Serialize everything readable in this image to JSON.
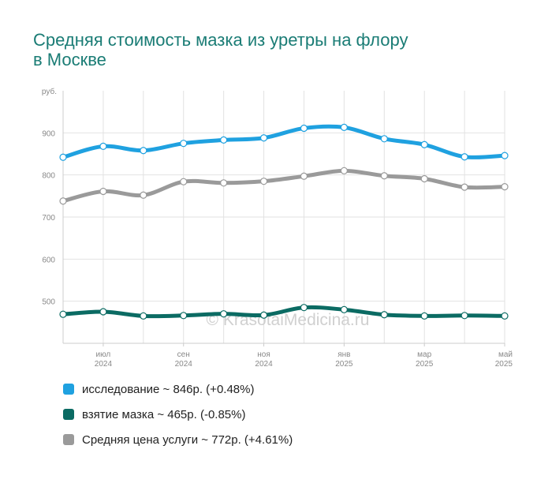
{
  "title_lines": [
    "Средняя стоимость мазка из уретры на флору",
    "в Москве"
  ],
  "watermark": "© KrasotaiMedicina.ru",
  "chart_data": {
    "type": "line",
    "ylabel": "руб.",
    "ylim": [
      400,
      1000
    ],
    "yticks": [
      500,
      600,
      700,
      800,
      900
    ],
    "grid": true,
    "x": [
      "2024-06",
      "2024-07",
      "2024-08",
      "2024-09",
      "2024-10",
      "2024-11",
      "2024-12",
      "2025-01",
      "2025-02",
      "2025-03",
      "2025-04",
      "2025-05"
    ],
    "xticks": [
      {
        "x": "2024-07",
        "month": "июл",
        "year": "2024"
      },
      {
        "x": "2024-09",
        "month": "сен",
        "year": "2024"
      },
      {
        "x": "2024-11",
        "month": "ноя",
        "year": "2024"
      },
      {
        "x": "2025-01",
        "month": "янв",
        "year": "2025"
      },
      {
        "x": "2025-03",
        "month": "мар",
        "year": "2025"
      },
      {
        "x": "2025-05",
        "month": "май",
        "year": "2025"
      }
    ],
    "series": [
      {
        "name": "исследование",
        "color": "#1fa1e0",
        "values": [
          842,
          868,
          858,
          875,
          883,
          888,
          911,
          913,
          886,
          872,
          843,
          846
        ]
      },
      {
        "name": "взятие мазка",
        "color": "#0b6b63",
        "values": [
          469,
          475,
          465,
          466,
          470,
          467,
          485,
          480,
          468,
          465,
          466,
          465
        ]
      },
      {
        "name": "Средняя цена услуги",
        "color": "#9a9a9a",
        "values": [
          738,
          761,
          752,
          784,
          781,
          785,
          797,
          810,
          798,
          791,
          771,
          772
        ]
      }
    ]
  },
  "legend": [
    {
      "text": "исследование ~ 846р. (+0.48%)",
      "color": "#1fa1e0"
    },
    {
      "text": "взятие мазка ~ 465р. (-0.85%)",
      "color": "#0b6b63"
    },
    {
      "text": "Средняя цена услуги ~ 772р. (+4.61%)",
      "color": "#9a9a9a"
    }
  ]
}
